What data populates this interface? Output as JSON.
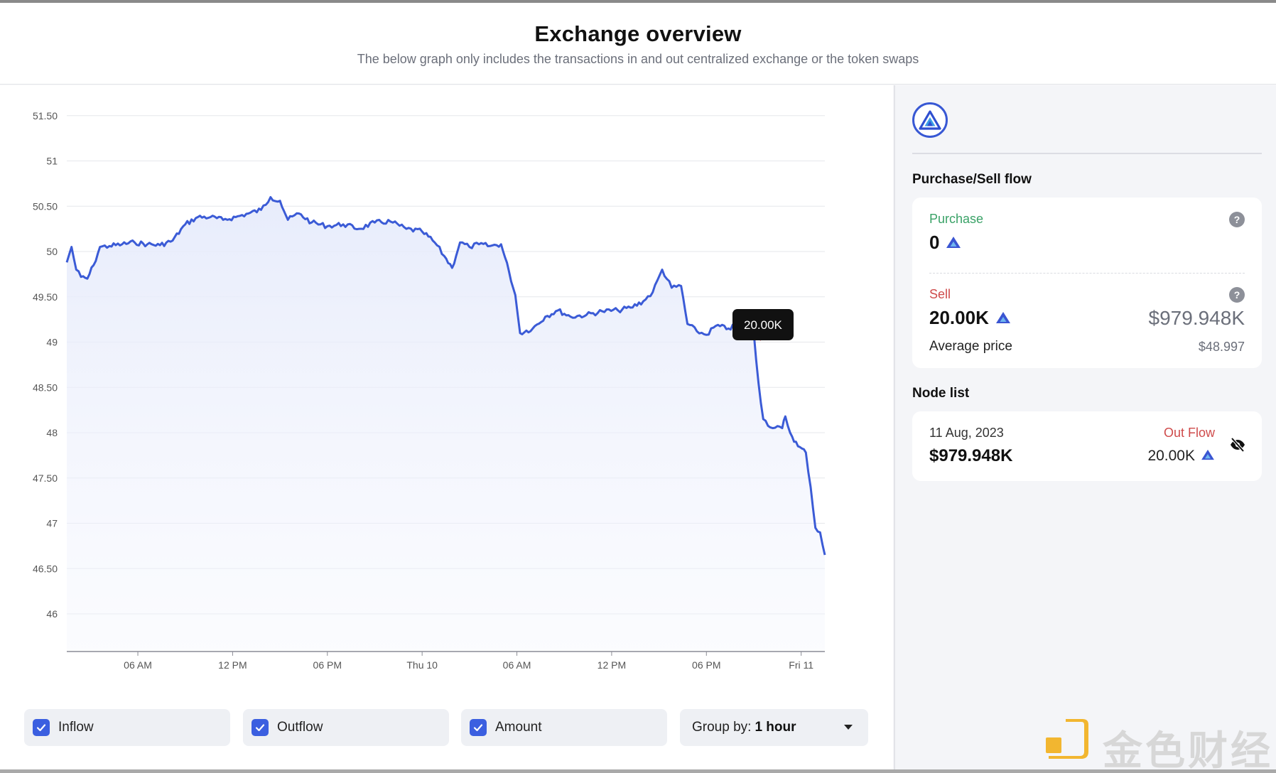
{
  "header": {
    "title": "Exchange overview",
    "subtitle": "The below graph only includes the transactions in and out centralized exchange or the token swaps"
  },
  "chart_data": {
    "type": "line",
    "title": "",
    "xlabel": "",
    "ylabel": "",
    "ylim": [
      45.6,
      51.6
    ],
    "y_ticks": [
      "51.50",
      "51",
      "50.50",
      "50",
      "49.50",
      "49",
      "48.50",
      "48",
      "47.50",
      "47",
      "46.50",
      "46"
    ],
    "x_ticks": [
      "06 AM",
      "12 PM",
      "06 PM",
      "Thu 10",
      "06 AM",
      "12 PM",
      "06 PM",
      "Fri 11"
    ],
    "x_range_hours": [
      1.5,
      49.5
    ],
    "line_color": "#3b5bd6",
    "grid": true,
    "series": [
      {
        "name": "",
        "points": [
          [
            1.5,
            49.88
          ],
          [
            1.8,
            50.05
          ],
          [
            2.1,
            49.8
          ],
          [
            2.4,
            49.72
          ],
          [
            2.8,
            49.7
          ],
          [
            3.2,
            49.85
          ],
          [
            3.6,
            50.05
          ],
          [
            4.2,
            50.06
          ],
          [
            5.0,
            50.08
          ],
          [
            5.8,
            50.1
          ],
          [
            6.6,
            50.08
          ],
          [
            7.4,
            50.07
          ],
          [
            8.2,
            50.12
          ],
          [
            9.0,
            50.3
          ],
          [
            9.8,
            50.38
          ],
          [
            10.6,
            50.38
          ],
          [
            11.4,
            50.35
          ],
          [
            12.2,
            50.38
          ],
          [
            13.0,
            50.42
          ],
          [
            13.8,
            50.46
          ],
          [
            14.4,
            50.6
          ],
          [
            15.0,
            50.56
          ],
          [
            15.5,
            50.35
          ],
          [
            16.2,
            50.42
          ],
          [
            17.0,
            50.32
          ],
          [
            18.0,
            50.28
          ],
          [
            19.0,
            50.3
          ],
          [
            20.0,
            50.25
          ],
          [
            21.0,
            50.32
          ],
          [
            22.0,
            50.33
          ],
          [
            23.0,
            50.25
          ],
          [
            24.0,
            50.22
          ],
          [
            24.8,
            50.1
          ],
          [
            25.4,
            49.95
          ],
          [
            25.9,
            49.82
          ],
          [
            26.4,
            50.1
          ],
          [
            27.0,
            50.05
          ],
          [
            27.6,
            50.08
          ],
          [
            28.3,
            50.06
          ],
          [
            29.0,
            50.08
          ],
          [
            29.5,
            49.78
          ],
          [
            29.9,
            49.52
          ],
          [
            30.2,
            49.1
          ],
          [
            31.0,
            49.15
          ],
          [
            31.8,
            49.28
          ],
          [
            32.6,
            49.35
          ],
          [
            33.4,
            49.28
          ],
          [
            34.4,
            49.3
          ],
          [
            35.4,
            49.34
          ],
          [
            36.4,
            49.35
          ],
          [
            37.2,
            49.38
          ],
          [
            38.0,
            49.45
          ],
          [
            38.6,
            49.55
          ],
          [
            39.2,
            49.8
          ],
          [
            39.8,
            49.6
          ],
          [
            40.4,
            49.62
          ],
          [
            40.8,
            49.2
          ],
          [
            41.4,
            49.12
          ],
          [
            42.0,
            49.08
          ],
          [
            42.6,
            49.18
          ],
          [
            43.4,
            49.15
          ],
          [
            44.2,
            49.2
          ],
          [
            44.9,
            49.2
          ],
          [
            45.0,
            49.1
          ],
          [
            45.3,
            48.55
          ],
          [
            45.6,
            48.15
          ],
          [
            46.2,
            48.05
          ],
          [
            46.8,
            48.05
          ],
          [
            47.0,
            48.18
          ],
          [
            47.3,
            48.0
          ],
          [
            47.8,
            47.85
          ],
          [
            48.3,
            47.78
          ],
          [
            48.6,
            47.4
          ],
          [
            48.9,
            46.95
          ],
          [
            49.2,
            46.9
          ],
          [
            49.5,
            46.65
          ]
        ]
      }
    ],
    "highlight": {
      "x": 45.0,
      "y": 49.1,
      "label": "20.00K",
      "marker_color": "#cf4b4b"
    }
  },
  "controls": {
    "inflow_label": "Inflow",
    "outflow_label": "Outflow",
    "amount_label": "Amount",
    "group_by_label": "Group by:",
    "group_by_value": "1 hour"
  },
  "sidebar": {
    "token_icon": "triangle-logo-icon",
    "flow_title": "Purchase/Sell flow",
    "purchase_label": "Purchase",
    "purchase_value": "0",
    "sell_label": "Sell",
    "sell_value": "20.00K",
    "sell_usd": "$979.948K",
    "avg_price_label": "Average price",
    "avg_price_value": "$48.997",
    "help_glyph": "?",
    "node_list_title": "Node list",
    "node": {
      "date": "11 Aug, 2023",
      "flow_type": "Out Flow",
      "usd": "$979.948K",
      "amount": "20.00K"
    }
  },
  "watermark": {
    "text": "金色财经"
  }
}
